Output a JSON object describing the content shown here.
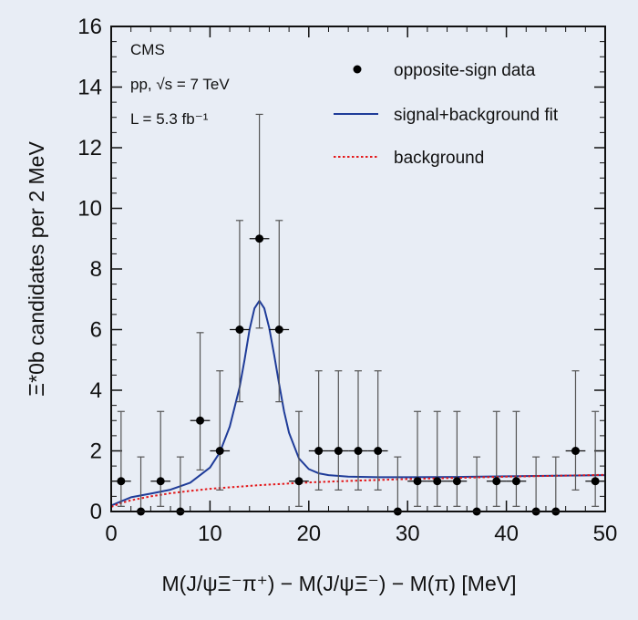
{
  "chart_data": {
    "type": "scatter",
    "xlabel": "M(J/ψΞ⁻π⁺) − M(J/ψΞ⁻) − M(π)  [MeV]",
    "ylabel": "Ξ*0b candidates per 2 MeV",
    "xlim": [
      0,
      50
    ],
    "ylim": [
      0,
      16
    ],
    "xticks": [
      0,
      10,
      20,
      30,
      40,
      50
    ],
    "yticks": [
      0,
      2,
      4,
      6,
      8,
      10,
      12,
      14,
      16
    ],
    "annotations": [
      "CMS",
      "pp, √s = 7 TeV",
      "L = 5.3 fb⁻¹"
    ],
    "legend_position": "top-right",
    "legend": [
      "opposite-sign data",
      "signal+background fit",
      "background"
    ],
    "colors": {
      "data": "#000000",
      "fit": "#1f3c99",
      "background": "#e41a1c",
      "background_fill": "#e8edf5"
    },
    "series": [
      {
        "name": "opposite-sign data",
        "style": "points",
        "x": [
          1,
          3,
          5,
          7,
          9,
          11,
          13,
          15,
          17,
          19,
          21,
          23,
          25,
          27,
          29,
          31,
          33,
          35,
          37,
          39,
          41,
          43,
          45,
          47,
          49
        ],
        "y": [
          1,
          0,
          1,
          0,
          3,
          2,
          6,
          9,
          6,
          1,
          2,
          2,
          2,
          2,
          0,
          1,
          1,
          1,
          0,
          1,
          1,
          0,
          0,
          2,
          1
        ],
        "yerr_low": [
          0.83,
          0,
          0.83,
          0,
          1.63,
          1.29,
          2.38,
          2.95,
          2.38,
          0.83,
          1.29,
          1.29,
          1.29,
          1.29,
          0,
          0.83,
          0.83,
          0.83,
          0,
          0.83,
          0.83,
          0,
          0,
          1.29,
          0.83
        ],
        "yerr_high": [
          2.3,
          1.8,
          2.3,
          1.8,
          2.9,
          2.64,
          3.6,
          4.1,
          3.6,
          2.3,
          2.64,
          2.64,
          2.64,
          2.64,
          1.8,
          2.3,
          2.3,
          2.3,
          1.8,
          2.3,
          2.3,
          1.8,
          1.8,
          2.64,
          2.3
        ],
        "xerr": 1
      },
      {
        "name": "signal+background fit",
        "style": "line",
        "x": [
          0,
          2,
          4,
          6,
          8,
          10,
          11,
          12,
          13,
          13.5,
          14,
          14.5,
          15,
          15.5,
          16,
          16.5,
          17,
          17.5,
          18,
          19,
          20,
          21,
          22,
          24,
          27,
          30,
          35,
          40,
          45,
          50
        ],
        "y": [
          0.2,
          0.47,
          0.59,
          0.72,
          0.95,
          1.45,
          1.95,
          2.8,
          4.1,
          5.0,
          6.0,
          6.7,
          6.95,
          6.7,
          6.05,
          5.15,
          4.2,
          3.3,
          2.6,
          1.75,
          1.4,
          1.26,
          1.2,
          1.15,
          1.13,
          1.13,
          1.14,
          1.16,
          1.18,
          1.2
        ]
      },
      {
        "name": "background",
        "style": "dotted",
        "x": [
          0,
          1,
          2,
          4,
          6,
          8,
          10,
          15,
          20,
          25,
          30,
          35,
          40,
          45,
          50
        ],
        "y": [
          0.15,
          0.28,
          0.37,
          0.5,
          0.6,
          0.68,
          0.75,
          0.87,
          0.96,
          1.02,
          1.07,
          1.11,
          1.15,
          1.18,
          1.21
        ]
      }
    ]
  }
}
